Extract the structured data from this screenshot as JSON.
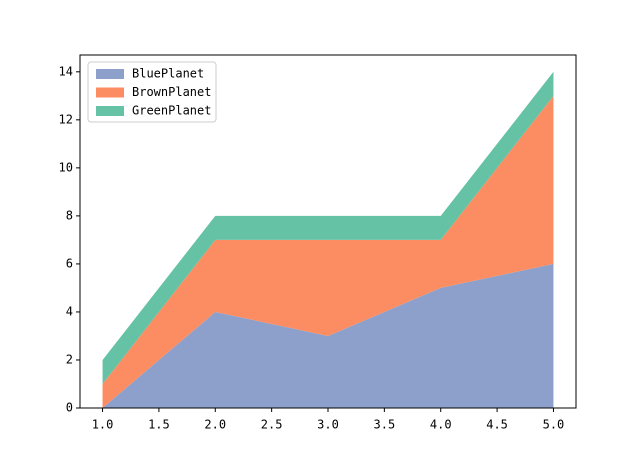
{
  "chart_data": {
    "type": "stackplot",
    "x": [
      1,
      2,
      3,
      4,
      5
    ],
    "series": [
      {
        "name": "BluePlanet",
        "color": "#8da0cb",
        "values": [
          0,
          4,
          3,
          5,
          6
        ]
      },
      {
        "name": "BrownPlanet",
        "color": "#fc8d62",
        "values": [
          1,
          3,
          4,
          2,
          7
        ]
      },
      {
        "name": "GreenPlanet",
        "color": "#66c2a5",
        "values": [
          1,
          1,
          1,
          1,
          1
        ]
      }
    ],
    "xlim": [
      0.8,
      5.2
    ],
    "xticks": [
      {
        "value": 1,
        "label": "1.0"
      },
      {
        "value": 1.5,
        "label": "1.5"
      },
      {
        "value": 2,
        "label": "2.0"
      },
      {
        "value": 2.5,
        "label": "2.5"
      },
      {
        "value": 3,
        "label": "3.0"
      },
      {
        "value": 3.5,
        "label": "3.5"
      },
      {
        "value": 4,
        "label": "4.0"
      },
      {
        "value": 4.5,
        "label": "4.5"
      },
      {
        "value": 5,
        "label": "5.0"
      }
    ],
    "ylim": [
      0,
      14.7
    ],
    "yticks": [
      0,
      2,
      4,
      6,
      8,
      10,
      12,
      14
    ],
    "legend": "upper left"
  }
}
